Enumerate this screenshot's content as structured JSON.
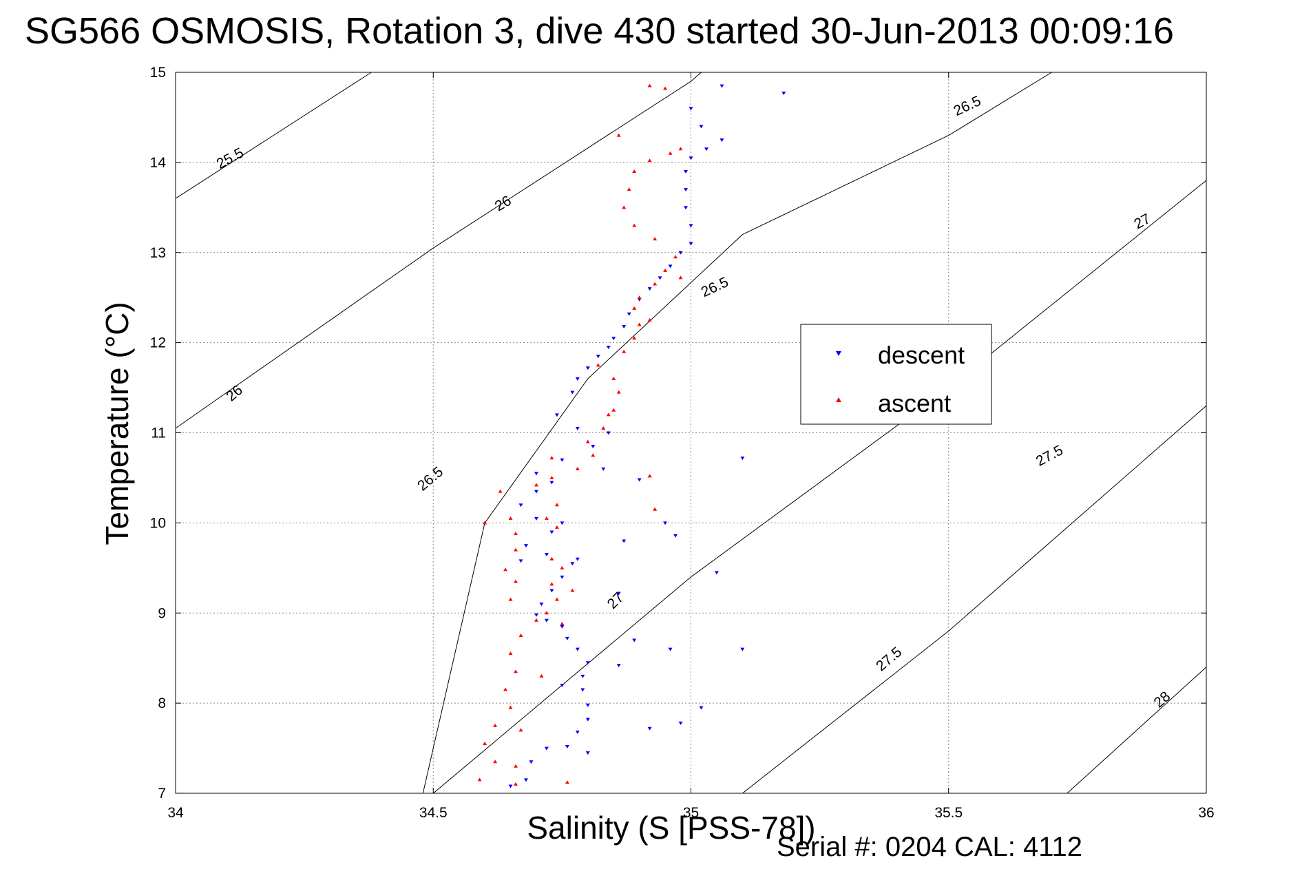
{
  "chart_data": {
    "type": "scatter",
    "title": "SG566 OSMOSIS, Rotation 3, dive 430 started 30-Jun-2013 00:09:16",
    "xlabel": "Salinity (S [PSS-78])",
    "ylabel": "Temperature (°C)",
    "xlim": [
      34,
      36
    ],
    "ylim": [
      7,
      15
    ],
    "x_ticks": [
      "34",
      "34.5",
      "35",
      "35.5",
      "36"
    ],
    "y_ticks": [
      "7",
      "8",
      "9",
      "10",
      "11",
      "12",
      "13",
      "14",
      "15"
    ],
    "grid": true,
    "legend_position": "right-center",
    "series": [
      {
        "name": "descent",
        "color": "#0000ff",
        "marker": "triangle-down",
        "points": [
          [
            34.65,
            7.08
          ],
          [
            34.68,
            7.15
          ],
          [
            34.69,
            7.35
          ],
          [
            34.72,
            7.5
          ],
          [
            34.76,
            7.52
          ],
          [
            34.78,
            7.68
          ],
          [
            34.8,
            7.82
          ],
          [
            34.8,
            7.98
          ],
          [
            34.79,
            8.15
          ],
          [
            34.79,
            8.3
          ],
          [
            34.8,
            8.45
          ],
          [
            34.78,
            8.6
          ],
          [
            34.76,
            8.72
          ],
          [
            34.75,
            8.85
          ],
          [
            34.72,
            8.92
          ],
          [
            34.7,
            8.98
          ],
          [
            34.71,
            9.1
          ],
          [
            34.73,
            9.25
          ],
          [
            34.75,
            9.4
          ],
          [
            34.77,
            9.55
          ],
          [
            34.72,
            9.65
          ],
          [
            34.67,
            9.58
          ],
          [
            34.68,
            9.75
          ],
          [
            34.73,
            9.9
          ],
          [
            34.75,
            10.0
          ],
          [
            34.7,
            10.05
          ],
          [
            34.67,
            10.2
          ],
          [
            34.7,
            10.35
          ],
          [
            34.73,
            10.45
          ],
          [
            34.7,
            10.55
          ],
          [
            34.75,
            10.7
          ],
          [
            34.81,
            10.85
          ],
          [
            34.84,
            11.0
          ],
          [
            34.78,
            11.05
          ],
          [
            34.74,
            11.2
          ],
          [
            34.77,
            11.45
          ],
          [
            34.78,
            11.6
          ],
          [
            34.8,
            11.72
          ],
          [
            34.82,
            11.85
          ],
          [
            34.84,
            11.95
          ],
          [
            34.85,
            12.05
          ],
          [
            34.87,
            12.18
          ],
          [
            34.88,
            12.32
          ],
          [
            34.9,
            12.48
          ],
          [
            34.92,
            12.6
          ],
          [
            34.94,
            12.72
          ],
          [
            34.96,
            12.85
          ],
          [
            34.98,
            13.0
          ],
          [
            35.0,
            13.1
          ],
          [
            35.0,
            13.3
          ],
          [
            34.99,
            13.5
          ],
          [
            34.99,
            13.7
          ],
          [
            34.99,
            13.9
          ],
          [
            35.0,
            14.05
          ],
          [
            35.03,
            14.15
          ],
          [
            35.06,
            14.25
          ],
          [
            35.02,
            14.4
          ],
          [
            35.0,
            14.6
          ],
          [
            35.06,
            14.85
          ],
          [
            35.18,
            14.77
          ],
          [
            34.86,
            8.42
          ],
          [
            34.89,
            8.7
          ],
          [
            34.92,
            7.72
          ],
          [
            34.98,
            7.78
          ],
          [
            35.02,
            7.95
          ],
          [
            35.05,
            9.45
          ],
          [
            34.97,
            9.86
          ],
          [
            35.1,
            8.6
          ],
          [
            35.1,
            10.72
          ],
          [
            34.96,
            8.6
          ],
          [
            34.83,
            10.6
          ],
          [
            34.9,
            10.48
          ],
          [
            34.95,
            10.0
          ],
          [
            34.87,
            9.8
          ],
          [
            34.86,
            9.22
          ],
          [
            34.75,
            8.2
          ],
          [
            34.8,
            7.45
          ],
          [
            34.78,
            9.6
          ]
        ]
      },
      {
        "name": "ascent",
        "color": "#ff0000",
        "marker": "triangle-up",
        "points": [
          [
            34.59,
            7.15
          ],
          [
            34.62,
            7.35
          ],
          [
            34.6,
            7.55
          ],
          [
            34.62,
            7.75
          ],
          [
            34.65,
            7.95
          ],
          [
            34.64,
            8.15
          ],
          [
            34.66,
            8.35
          ],
          [
            34.65,
            8.55
          ],
          [
            34.67,
            8.75
          ],
          [
            34.7,
            8.92
          ],
          [
            34.72,
            9.0
          ],
          [
            34.75,
            8.88
          ],
          [
            34.74,
            9.15
          ],
          [
            34.73,
            9.32
          ],
          [
            34.75,
            9.5
          ],
          [
            34.73,
            9.6
          ],
          [
            34.66,
            9.35
          ],
          [
            34.65,
            9.15
          ],
          [
            34.64,
            9.48
          ],
          [
            34.66,
            9.7
          ],
          [
            34.66,
            9.88
          ],
          [
            34.65,
            10.05
          ],
          [
            34.72,
            10.05
          ],
          [
            34.74,
            9.95
          ],
          [
            34.74,
            10.2
          ],
          [
            34.7,
            10.42
          ],
          [
            34.73,
            10.5
          ],
          [
            34.78,
            10.6
          ],
          [
            34.81,
            10.75
          ],
          [
            34.8,
            10.9
          ],
          [
            34.83,
            11.05
          ],
          [
            34.85,
            11.25
          ],
          [
            34.86,
            11.45
          ],
          [
            34.85,
            11.6
          ],
          [
            34.82,
            11.75
          ],
          [
            34.87,
            11.9
          ],
          [
            34.89,
            12.05
          ],
          [
            34.9,
            12.2
          ],
          [
            34.92,
            12.25
          ],
          [
            34.89,
            12.38
          ],
          [
            34.9,
            12.5
          ],
          [
            34.93,
            12.65
          ],
          [
            34.95,
            12.8
          ],
          [
            34.97,
            12.95
          ],
          [
            34.93,
            13.15
          ],
          [
            34.89,
            13.3
          ],
          [
            34.87,
            13.5
          ],
          [
            34.88,
            13.7
          ],
          [
            34.89,
            13.9
          ],
          [
            34.92,
            14.02
          ],
          [
            34.96,
            14.1
          ],
          [
            34.98,
            14.15
          ],
          [
            34.92,
            14.85
          ],
          [
            34.95,
            14.82
          ],
          [
            34.86,
            14.3
          ],
          [
            34.84,
            11.2
          ],
          [
            34.92,
            10.52
          ],
          [
            34.98,
            12.72
          ],
          [
            34.93,
            10.15
          ],
          [
            34.66,
            7.1
          ],
          [
            34.67,
            7.7
          ],
          [
            34.71,
            8.3
          ],
          [
            34.6,
            10.0
          ],
          [
            34.63,
            10.35
          ],
          [
            34.73,
            10.72
          ],
          [
            34.77,
            9.25
          ],
          [
            34.66,
            7.3
          ],
          [
            34.76,
            7.12
          ]
        ]
      }
    ],
    "contours": [
      {
        "label": "25.5",
        "points": [
          [
            34.0,
            13.6
          ],
          [
            34.38,
            15.0
          ]
        ]
      },
      {
        "label": "26",
        "points": [
          [
            34.0,
            11.05
          ],
          [
            34.5,
            13.05
          ],
          [
            35.0,
            14.9
          ],
          [
            35.02,
            15.0
          ]
        ]
      },
      {
        "label": "26.5",
        "points": [
          [
            34.48,
            7.0
          ],
          [
            34.6,
            10.0
          ],
          [
            34.8,
            11.6
          ],
          [
            35.1,
            13.2
          ],
          [
            35.5,
            14.3
          ],
          [
            35.7,
            15.0
          ]
        ]
      },
      {
        "label": "27",
        "points": [
          [
            34.5,
            7.0
          ],
          [
            35.0,
            9.4
          ],
          [
            35.5,
            11.5
          ],
          [
            36.0,
            13.8
          ]
        ]
      },
      {
        "label": "27.5",
        "points": [
          [
            35.1,
            7.0
          ],
          [
            35.5,
            8.8
          ],
          [
            36.0,
            11.3
          ]
        ]
      },
      {
        "label": "28",
        "points": [
          [
            35.73,
            7.0
          ],
          [
            36.0,
            8.4
          ]
        ]
      }
    ],
    "contour_labels": [
      {
        "text": "25.5",
        "at": [
          34.11,
          14.0
        ],
        "angle": -28
      },
      {
        "text": "26",
        "at": [
          34.64,
          13.5
        ],
        "angle": -30
      },
      {
        "text": "26",
        "at": [
          34.12,
          11.4
        ],
        "angle": -40
      },
      {
        "text": "26.5",
        "at": [
          35.54,
          14.58
        ],
        "angle": -25
      },
      {
        "text": "26.5",
        "at": [
          35.05,
          12.57
        ],
        "angle": -25
      },
      {
        "text": "26.5",
        "at": [
          34.5,
          10.45
        ],
        "angle": -40
      },
      {
        "text": "27",
        "at": [
          35.88,
          13.3
        ],
        "angle": -28
      },
      {
        "text": "27",
        "at": [
          34.86,
          9.1
        ],
        "angle": -45
      },
      {
        "text": "27.5",
        "at": [
          35.7,
          10.7
        ],
        "angle": -28
      },
      {
        "text": "27.5",
        "at": [
          35.39,
          8.45
        ],
        "angle": -40
      },
      {
        "text": "28",
        "at": [
          35.92,
          8.0
        ],
        "angle": -40
      }
    ]
  },
  "legend": {
    "descent_label": "descent",
    "ascent_label": "ascent"
  },
  "footer": {
    "serial": "Serial #: 0204  CAL: 4112"
  }
}
